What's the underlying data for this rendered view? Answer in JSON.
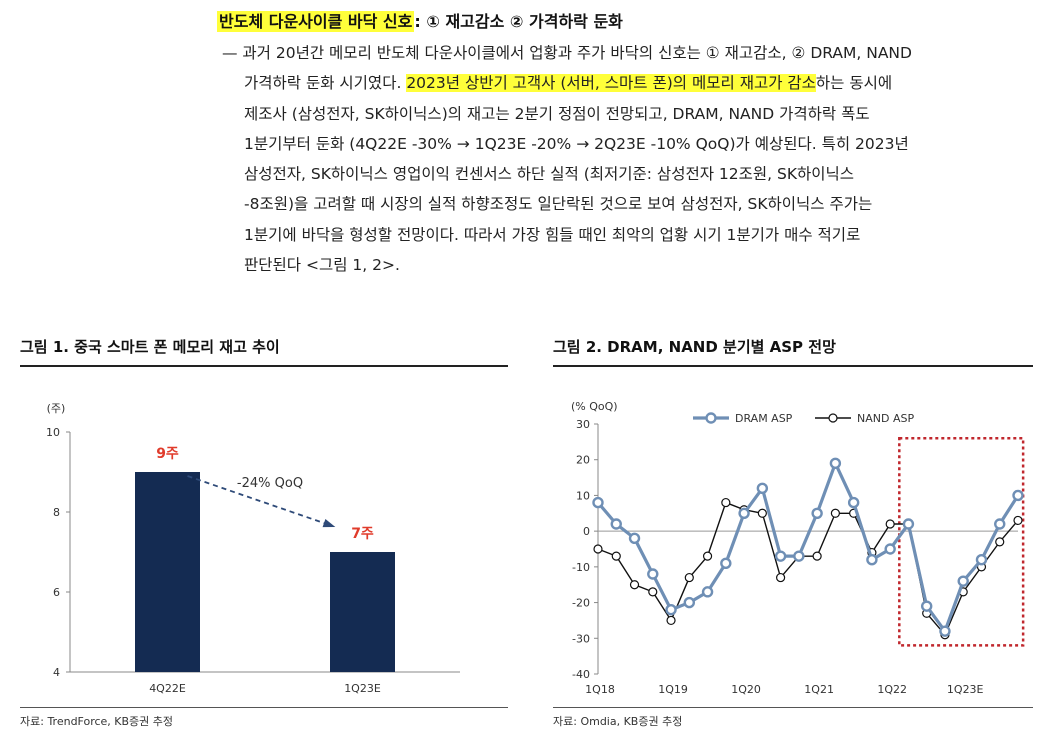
{
  "headline": {
    "highlighted": "반도체 다운사이클 바닥 신호",
    "rest": ": ① 재고감소 ② 가격하락 둔화"
  },
  "paragraph": {
    "lines": [
      "— 과거 20년간 메모리 반도체 다운사이클에서 업황과 주가 바닥의 신호는 ① 재고감소, ② DRAM, NAND",
      "가격하락 둔화 시기였다. ",
      "2023년 상반기 고객사 (서버, 스마트 폰)의 메모리 재고가 감소",
      "하는 동시에",
      "제조사 (삼성전자, SK하이닉스)의 재고는 2분기 정점이 전망되고, DRAM, NAND 가격하락 폭도",
      "1분기부터 둔화 (4Q22E -30% → 1Q23E -20% → 2Q23E -10% QoQ)가 예상된다. 특히 2023년",
      "삼성전자, SK하이닉스 영업이익 컨센서스 하단 실적 (최저기준: 삼성전자 12조원, SK하이닉스",
      " -8조원)을 고려할 때 시장의 실적 하향조정도 일단락된 것으로 보여 삼성전자, SK하이닉스 주가는",
      "1분기에 바닥을 형성할 전망이다. 따라서 가장 힘들 때인 최악의 업황 시기 1분기가 매수 적기로",
      "판단된다 <그림 1, 2>."
    ]
  },
  "figure1": {
    "title": "그림 1. 중국 스마트 폰 메모리 재고 추이",
    "source": "자료: TrendForce, KB증권 추정",
    "colors": {
      "bar": "#142b52",
      "label": "#e03b2b",
      "arrow": "#2e4a78"
    },
    "annotation": "-24% QoQ",
    "chart_data": {
      "type": "bar",
      "categories": [
        "4Q22E",
        "1Q23E"
      ],
      "values": [
        9,
        7
      ],
      "data_labels": [
        "9주",
        "7주"
      ],
      "ylabel": "(주)",
      "ylim": [
        4,
        10
      ],
      "yticks": [
        4,
        6,
        8,
        10
      ]
    }
  },
  "figure2": {
    "title": "그림 2. DRAM, NAND 분기별 ASP 전망",
    "source": "자료: Omdia, KB증권 추정",
    "colors": {
      "dram": "#6f8fb5",
      "nand": "#111111",
      "box": "#c0272d"
    },
    "chart_data": {
      "type": "line",
      "ylabel": "(% QoQ)",
      "ylim": [
        -40,
        30
      ],
      "yticks": [
        30,
        20,
        10,
        0,
        -10,
        -20,
        -30,
        -40
      ],
      "x": [
        1,
        2,
        3,
        4,
        5,
        6,
        7,
        8,
        9,
        10,
        11,
        12,
        13,
        14,
        15,
        16,
        17,
        18,
        19,
        20,
        21,
        22,
        23,
        24
      ],
      "xtick_labels": [
        {
          "x": 1,
          "label": "1Q18"
        },
        {
          "x": 5,
          "label": "1Q19"
        },
        {
          "x": 9,
          "label": "1Q20"
        },
        {
          "x": 13,
          "label": "1Q21"
        },
        {
          "x": 17,
          "label": "1Q22"
        },
        {
          "x": 21,
          "label": "1Q23E"
        }
      ],
      "series": [
        {
          "name": "DRAM ASP",
          "values": [
            8,
            2,
            -2,
            -12,
            -22,
            -20,
            -17,
            -9,
            5,
            12,
            -7,
            -7,
            5,
            19,
            8,
            -8,
            -5,
            2,
            -21,
            -28,
            -14,
            -8,
            2,
            10
          ]
        },
        {
          "name": "NAND ASP",
          "values": [
            -5,
            -7,
            -15,
            -17,
            -25,
            -13,
            -7,
            8,
            6,
            5,
            -13,
            -7,
            -7,
            5,
            5,
            -6,
            2,
            2,
            -23,
            -29,
            -17,
            -10,
            -3,
            3
          ]
        }
      ],
      "legend_position": "top",
      "highlight_range": [
        17.5,
        24.5
      ]
    }
  }
}
